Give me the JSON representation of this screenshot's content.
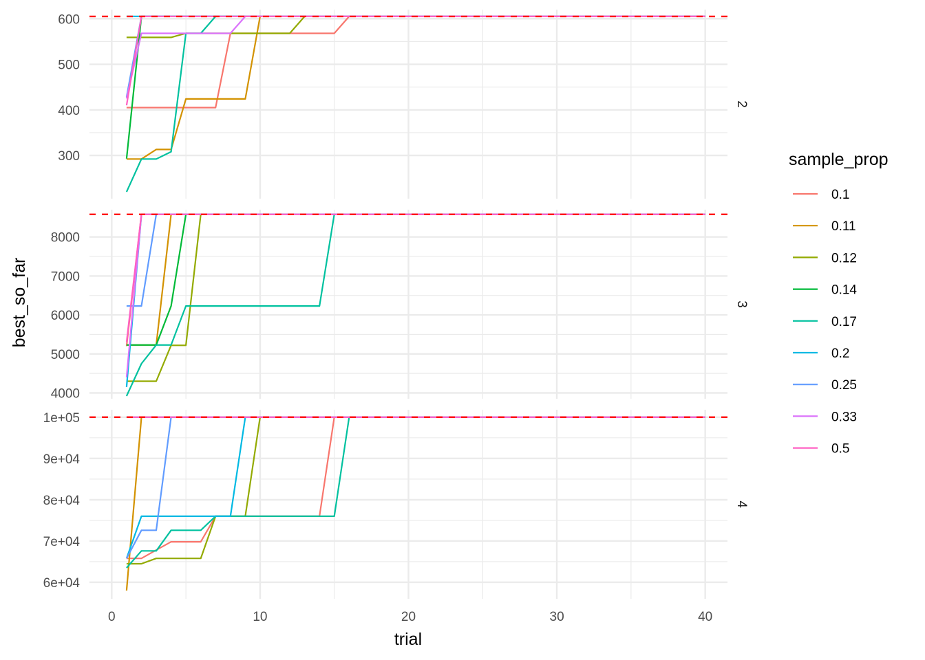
{
  "chart_data": {
    "type": "line",
    "xlabel": "trial",
    "ylabel": "best_so_far",
    "legend_title": "sample_prop",
    "legend_position": "right",
    "grid": true,
    "x_ticks": [
      0,
      10,
      20,
      30,
      40
    ],
    "xlim": [
      -1.5,
      41.5
    ],
    "series_names": [
      "0.1",
      "0.11",
      "0.12",
      "0.14",
      "0.17",
      "0.2",
      "0.25",
      "0.33",
      "0.5"
    ],
    "colors": [
      "#F8766D",
      "#D39200",
      "#93AA00",
      "#00BA38",
      "#00C19F",
      "#00B9E3",
      "#619CFF",
      "#DB72FB",
      "#FF61C3"
    ],
    "reference_line_color": "#FF0000",
    "panels": [
      {
        "label": "2",
        "ylim": [
          205,
          620
        ],
        "y_ticks": [
          300,
          400,
          500,
          600
        ],
        "y_tick_labels": [
          "300",
          "400",
          "500",
          "600"
        ],
        "reference": 605,
        "series": [
          {
            "name": "0.1",
            "x": [
              1,
              2,
              7,
              8,
              15,
              16,
              40
            ],
            "y": [
              405,
              405,
              405,
              568,
              568,
              605,
              605
            ]
          },
          {
            "name": "0.11",
            "x": [
              1,
              2,
              3,
              4,
              5,
              9,
              10,
              40
            ],
            "y": [
              292,
              292,
              313,
              313,
              424,
              424,
              605,
              605
            ]
          },
          {
            "name": "0.12",
            "x": [
              1,
              4,
              5,
              12,
              13,
              40
            ],
            "y": [
              559,
              559,
              568,
              568,
              605,
              605
            ]
          },
          {
            "name": "0.14",
            "x": [
              1,
              2,
              40
            ],
            "y": [
              293,
              605,
              605
            ]
          },
          {
            "name": "0.17",
            "x": [
              1,
              2,
              3,
              4,
              5,
              6,
              7,
              40
            ],
            "y": [
              220,
              292,
              292,
              308,
              568,
              568,
              605,
              605
            ]
          },
          {
            "name": "0.2",
            "x": [
              1,
              2,
              40
            ],
            "y": [
              605,
              605,
              605
            ]
          },
          {
            "name": "0.25",
            "x": [
              1,
              2,
              40
            ],
            "y": [
              428,
              605,
              605
            ]
          },
          {
            "name": "0.33",
            "x": [
              1,
              2,
              8,
              9,
              40
            ],
            "y": [
              425,
              568,
              568,
              605,
              605
            ]
          },
          {
            "name": "0.5",
            "x": [
              1,
              2,
              40
            ],
            "y": [
              410,
              605,
              605
            ]
          }
        ]
      },
      {
        "label": "3",
        "ylim": [
          3850,
          8700
        ],
        "y_ticks": [
          4000,
          5000,
          6000,
          7000,
          8000
        ],
        "y_tick_labels": [
          "4000",
          "5000",
          "6000",
          "7000",
          "8000"
        ],
        "reference": 8580,
        "series": [
          {
            "name": "0.1",
            "x": [
              1,
              2,
              40
            ],
            "y": [
              5200,
              8580,
              8580
            ]
          },
          {
            "name": "0.11",
            "x": [
              1,
              2,
              3,
              4,
              40
            ],
            "y": [
              5230,
              5230,
              5230,
              8580,
              8580
            ]
          },
          {
            "name": "0.12",
            "x": [
              1,
              2,
              3,
              4,
              5,
              6,
              40
            ],
            "y": [
              4300,
              4300,
              4300,
              5220,
              5220,
              8580,
              8580
            ]
          },
          {
            "name": "0.14",
            "x": [
              1,
              2,
              3,
              4,
              5,
              40
            ],
            "y": [
              5230,
              5230,
              5230,
              6230,
              8580,
              8580
            ]
          },
          {
            "name": "0.17",
            "x": [
              1,
              2,
              3,
              4,
              5,
              6,
              14,
              15,
              40
            ],
            "y": [
              3920,
              4750,
              5230,
              5230,
              6230,
              6230,
              6230,
              8580,
              8580
            ]
          },
          {
            "name": "0.2",
            "x": [
              1,
              2,
              40
            ],
            "y": [
              4150,
              8580,
              8580
            ]
          },
          {
            "name": "0.25",
            "x": [
              1,
              2,
              3,
              40
            ],
            "y": [
              6230,
              6230,
              8580,
              8580
            ]
          },
          {
            "name": "0.33",
            "x": [
              1,
              2,
              40
            ],
            "y": [
              4400,
              8580,
              8580
            ]
          },
          {
            "name": "0.5",
            "x": [
              1,
              2,
              40
            ],
            "y": [
              5300,
              8580,
              8580
            ]
          }
        ]
      },
      {
        "label": "4",
        "ylim": [
          56000,
          101800
        ],
        "y_ticks": [
          60000,
          70000,
          80000,
          90000,
          100000
        ],
        "y_tick_labels": [
          "6e+04",
          "7e+04",
          "8e+04",
          "9e+04",
          "1e+05"
        ],
        "reference": 100000,
        "series": [
          {
            "name": "0.1",
            "x": [
              1,
              2,
              3,
              4,
              5,
              6,
              7,
              14,
              15,
              40
            ],
            "y": [
              65800,
              65800,
              67800,
              69800,
              69800,
              69800,
              76000,
              76000,
              100000,
              100000
            ]
          },
          {
            "name": "0.11",
            "x": [
              1,
              2,
              40
            ],
            "y": [
              58000,
              100000,
              100000
            ]
          },
          {
            "name": "0.12",
            "x": [
              1,
              2,
              3,
              6,
              7,
              9,
              10,
              40
            ],
            "y": [
              64500,
              64500,
              65800,
              65800,
              76000,
              76000,
              100000,
              100000
            ]
          },
          {
            "name": "0.14",
            "x": [
              1,
              40
            ],
            "y": [
              100000,
              100000
            ]
          },
          {
            "name": "0.17",
            "x": [
              1,
              2,
              3,
              4,
              6,
              7,
              15,
              16,
              40
            ],
            "y": [
              63500,
              67600,
              67600,
              72600,
              72600,
              76000,
              76000,
              100000,
              100000
            ]
          },
          {
            "name": "0.2",
            "x": [
              1,
              2,
              8,
              9,
              40
            ],
            "y": [
              65800,
              76000,
              76000,
              100000,
              100000
            ]
          },
          {
            "name": "0.25",
            "x": [
              1,
              2,
              3,
              4,
              40
            ],
            "y": [
              65800,
              72600,
              72600,
              100000,
              100000
            ]
          },
          {
            "name": "0.33",
            "x": [
              1,
              40
            ],
            "y": [
              100000,
              100000
            ]
          },
          {
            "name": "0.5",
            "x": [
              1,
              40
            ],
            "y": [
              100000,
              100000
            ]
          }
        ]
      }
    ]
  }
}
